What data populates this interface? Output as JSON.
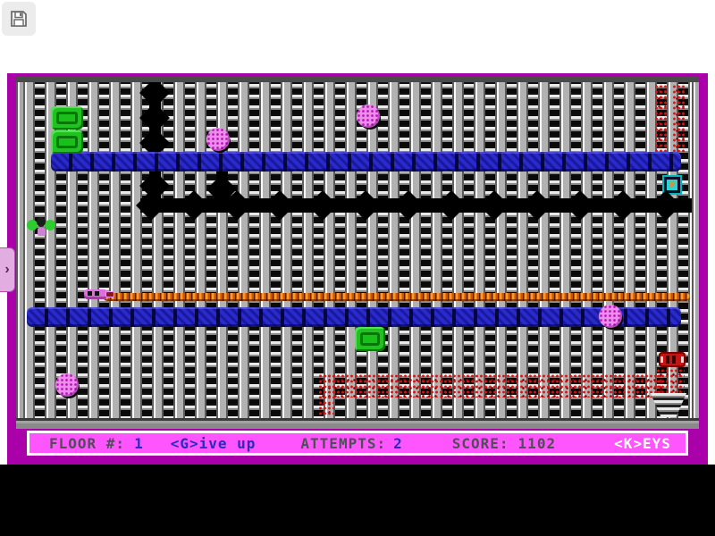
{
  "toolbar": {
    "save_icon": "floppy-disk"
  },
  "side_toggle": {
    "chevron": "›"
  },
  "status_bar": {
    "floor_label": "FLOOR #:",
    "floor_value": "1",
    "give_up_label": "<G>ive up",
    "attempts_label": "ATTEMPTS:",
    "attempts_value": "2",
    "score_label": "SCORE:",
    "score_value": "1102",
    "keys_label": "<K>EYS"
  },
  "sprites": {
    "monitor_glyph": "W"
  },
  "colors": {
    "border_magenta": "#AA00AA",
    "status_pink": "#FF55FF",
    "status_text_dark": "#4e4e56",
    "status_text_blue": "#2a2ac0",
    "platform_blue": "#2A2ACC",
    "item_green": "#22C122",
    "ball_pink": "#EE8CEE",
    "chain_orange": "#E8731C",
    "hazard_red": "#CC1111"
  }
}
